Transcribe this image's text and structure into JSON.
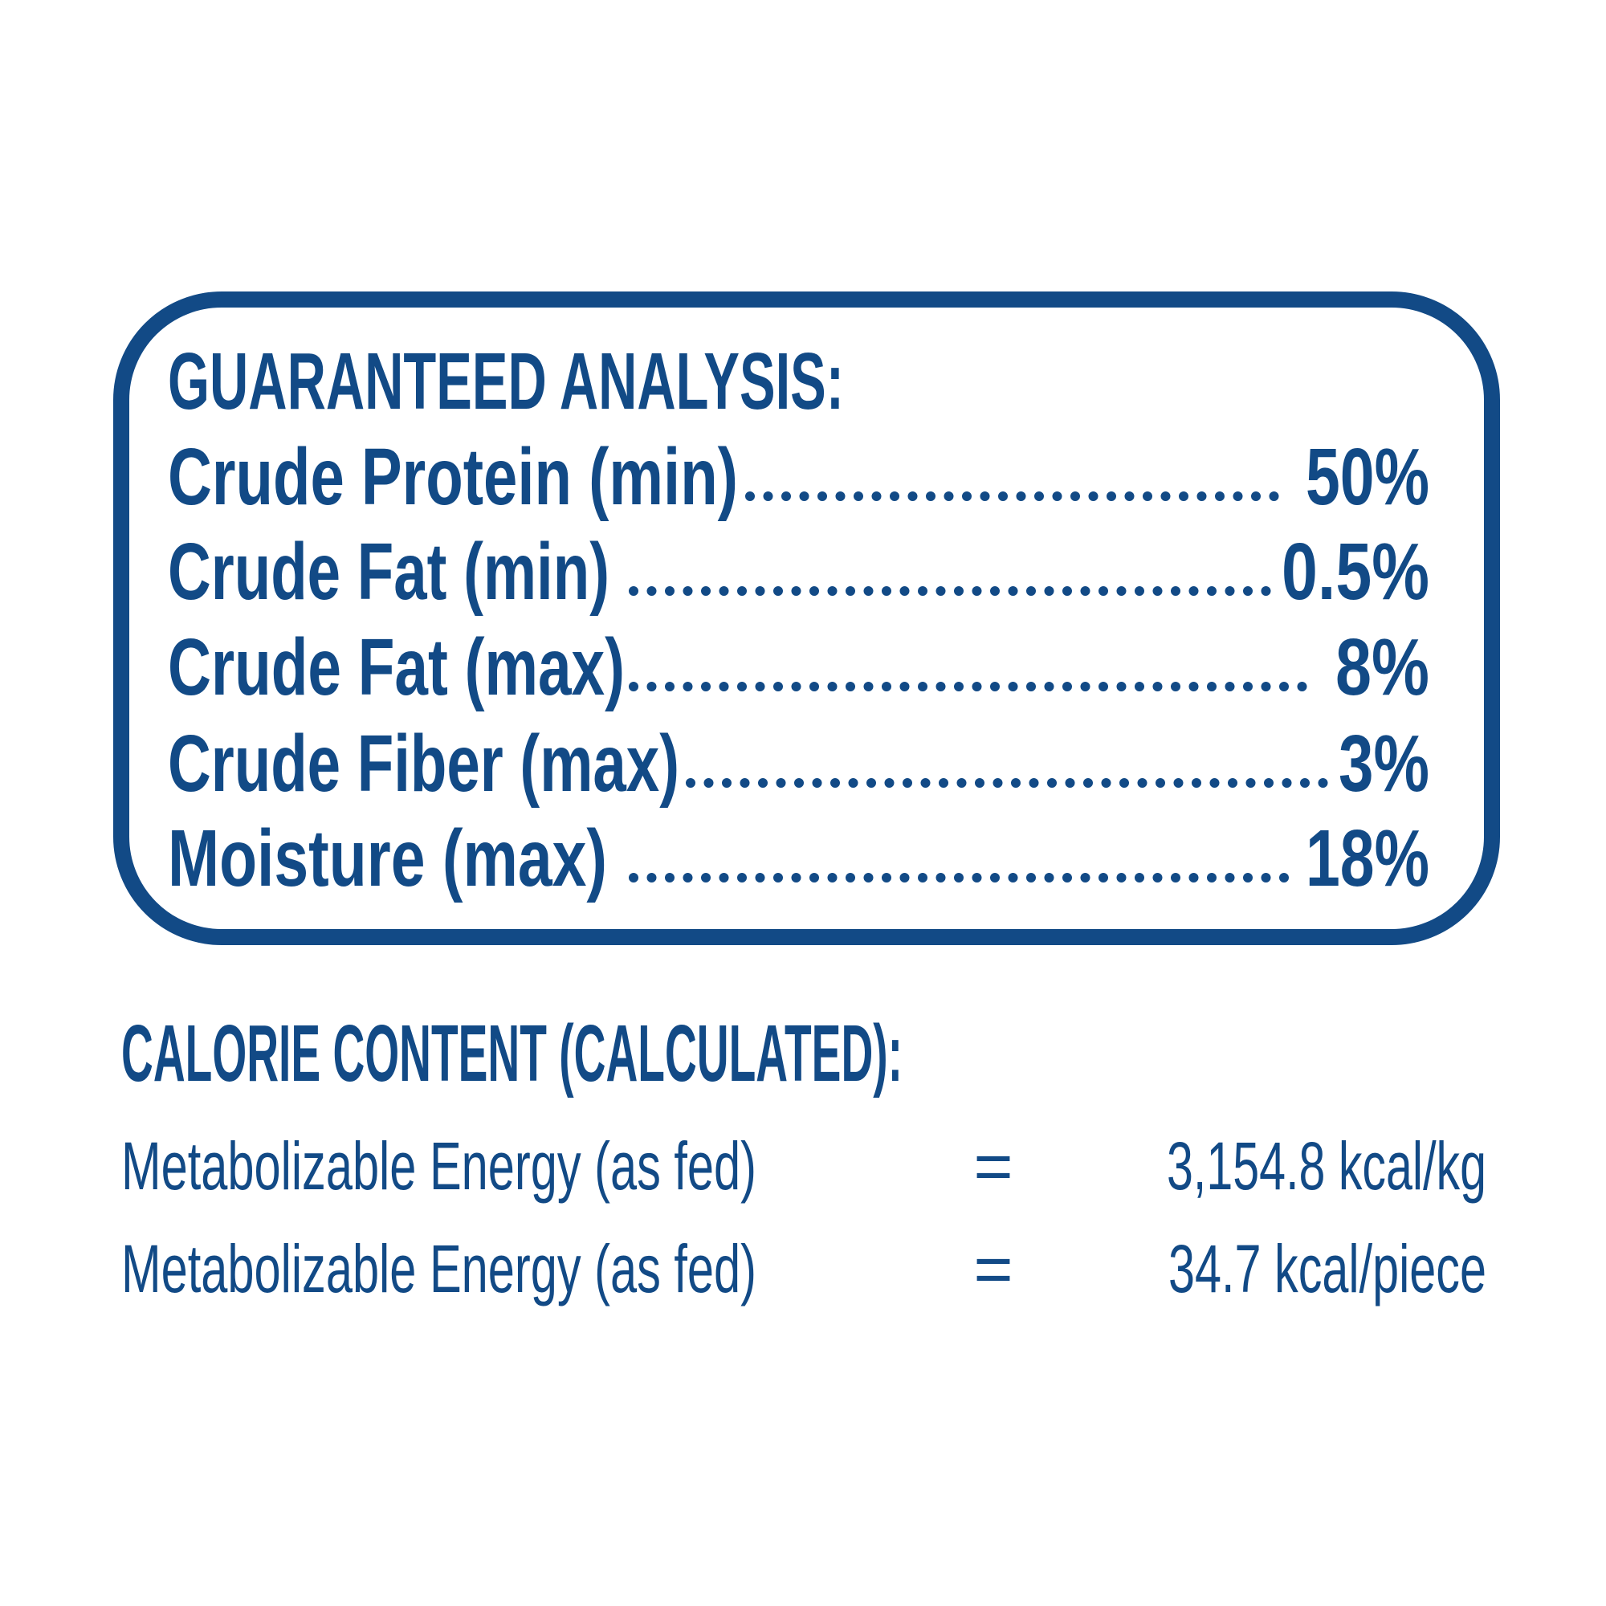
{
  "guaranteed_analysis": {
    "title": "GUARANTEED ANALYSIS:",
    "rows": [
      {
        "label": "Crude Protein (min)",
        "value": "50%"
      },
      {
        "label": "Crude Fat (min)",
        "value": "0.5%"
      },
      {
        "label": "Crude Fat (max)",
        "value": "8%"
      },
      {
        "label": "Crude Fiber (max)",
        "value": "3%"
      },
      {
        "label": "Moisture (max)",
        "value": "18%"
      }
    ]
  },
  "calorie_content": {
    "title": "CALORIE CONTENT (CALCULATED):",
    "rows": [
      {
        "label": "Metabolizable Energy (as fed)",
        "sign": "=",
        "value": "3,154.8 kcal/kg"
      },
      {
        "label": "Metabolizable Energy (as fed)",
        "sign": "=",
        "value": "34.7 kcal/piece"
      }
    ]
  }
}
